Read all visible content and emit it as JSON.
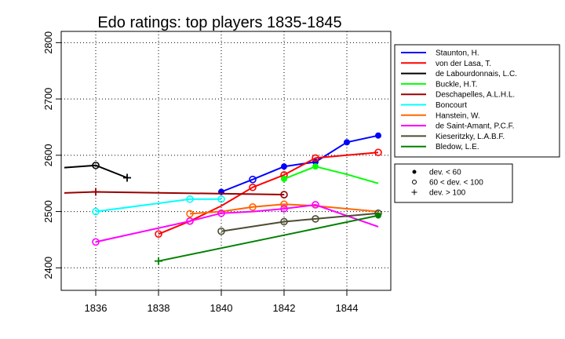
{
  "chart_data": {
    "type": "line",
    "title": "Edo ratings: top players 1835-1845",
    "xlabel": "",
    "ylabel": "",
    "xlim": [
      1834.9,
      1845.4
    ],
    "ylim": [
      2360,
      2820
    ],
    "xticks": [
      1836,
      1838,
      1840,
      1842,
      1844
    ],
    "yticks": [
      2400,
      2500,
      2600,
      2700,
      2800
    ],
    "grid": true,
    "legend_position": "right",
    "series": [
      {
        "name": "Staunton, H.",
        "color": "#0000ff",
        "points": [
          [
            1840,
            2535,
            "filled"
          ],
          [
            1841,
            2557,
            "open"
          ],
          [
            1842,
            2580,
            "filled"
          ],
          [
            1843,
            2588,
            "filled"
          ],
          [
            1844,
            2623,
            "filled"
          ],
          [
            1845,
            2635,
            "filled"
          ]
        ]
      },
      {
        "name": "von der Lasa, T.",
        "color": "#ff0000",
        "points": [
          [
            1838,
            2460,
            "open"
          ],
          [
            1839,
            2483,
            "open"
          ],
          [
            1840,
            2510,
            "none"
          ],
          [
            1841,
            2543,
            "open"
          ],
          [
            1842,
            2565,
            "open"
          ],
          [
            1843,
            2595,
            "open"
          ],
          [
            1844,
            2600,
            "none"
          ],
          [
            1845,
            2605,
            "open"
          ]
        ]
      },
      {
        "name": "de Labourdonnais, L.C.",
        "color": "#000000",
        "points": [
          [
            1835,
            2578,
            "none"
          ],
          [
            1836,
            2582,
            "open"
          ],
          [
            1837,
            2560,
            "plus"
          ]
        ]
      },
      {
        "name": "Buckle, H.T.",
        "color": "#00ff00",
        "points": [
          [
            1842,
            2558,
            "filled"
          ],
          [
            1843,
            2580,
            "filled"
          ],
          [
            1844,
            2566,
            "none"
          ],
          [
            1845,
            2550,
            "none"
          ]
        ]
      },
      {
        "name": "Deschapelles, A.L.H.L.",
        "color": "#990000",
        "points": [
          [
            1835,
            2533,
            "none"
          ],
          [
            1836,
            2535,
            "plus"
          ],
          [
            1842,
            2530,
            "open"
          ]
        ]
      },
      {
        "name": "Boncourt",
        "color": "#00ffff",
        "points": [
          [
            1836,
            2500,
            "open"
          ],
          [
            1839,
            2522,
            "open"
          ],
          [
            1840,
            2522,
            "open"
          ]
        ]
      },
      {
        "name": "Hanstein, W.",
        "color": "#ff6600",
        "points": [
          [
            1839,
            2496,
            "open"
          ],
          [
            1840,
            2500,
            "none"
          ],
          [
            1841,
            2508,
            "open"
          ],
          [
            1842,
            2513,
            "open"
          ],
          [
            1843,
            2510,
            "none"
          ],
          [
            1844,
            2505,
            "none"
          ],
          [
            1845,
            2500,
            "none"
          ]
        ]
      },
      {
        "name": "de Saint-Amant, P.C.F.",
        "color": "#ff00ff",
        "points": [
          [
            1836,
            2446,
            "open"
          ],
          [
            1839,
            2483,
            "open"
          ],
          [
            1840,
            2497,
            "open"
          ],
          [
            1841,
            2500,
            "none"
          ],
          [
            1842,
            2505,
            "open"
          ],
          [
            1843,
            2512,
            "open"
          ],
          [
            1845,
            2473,
            "none"
          ]
        ]
      },
      {
        "name": "Kieseritzky, L.A.B.F.",
        "color": "#4d4d33",
        "points": [
          [
            1840,
            2465,
            "open"
          ],
          [
            1842,
            2482,
            "open"
          ],
          [
            1843,
            2487,
            "open"
          ],
          [
            1845,
            2497,
            "open"
          ]
        ]
      },
      {
        "name": "Bledow, L.E.",
        "color": "#008000",
        "points": [
          [
            1838,
            2412,
            "plus"
          ],
          [
            1840,
            2435,
            "none"
          ],
          [
            1842,
            2458,
            "none"
          ],
          [
            1845,
            2493,
            "filled"
          ]
        ]
      }
    ],
    "marker_legend": [
      {
        "symbol": "filled",
        "label": "dev. < 60"
      },
      {
        "symbol": "open",
        "label": "60 < dev. < 100"
      },
      {
        "symbol": "plus",
        "label": "dev. > 100"
      }
    ]
  }
}
